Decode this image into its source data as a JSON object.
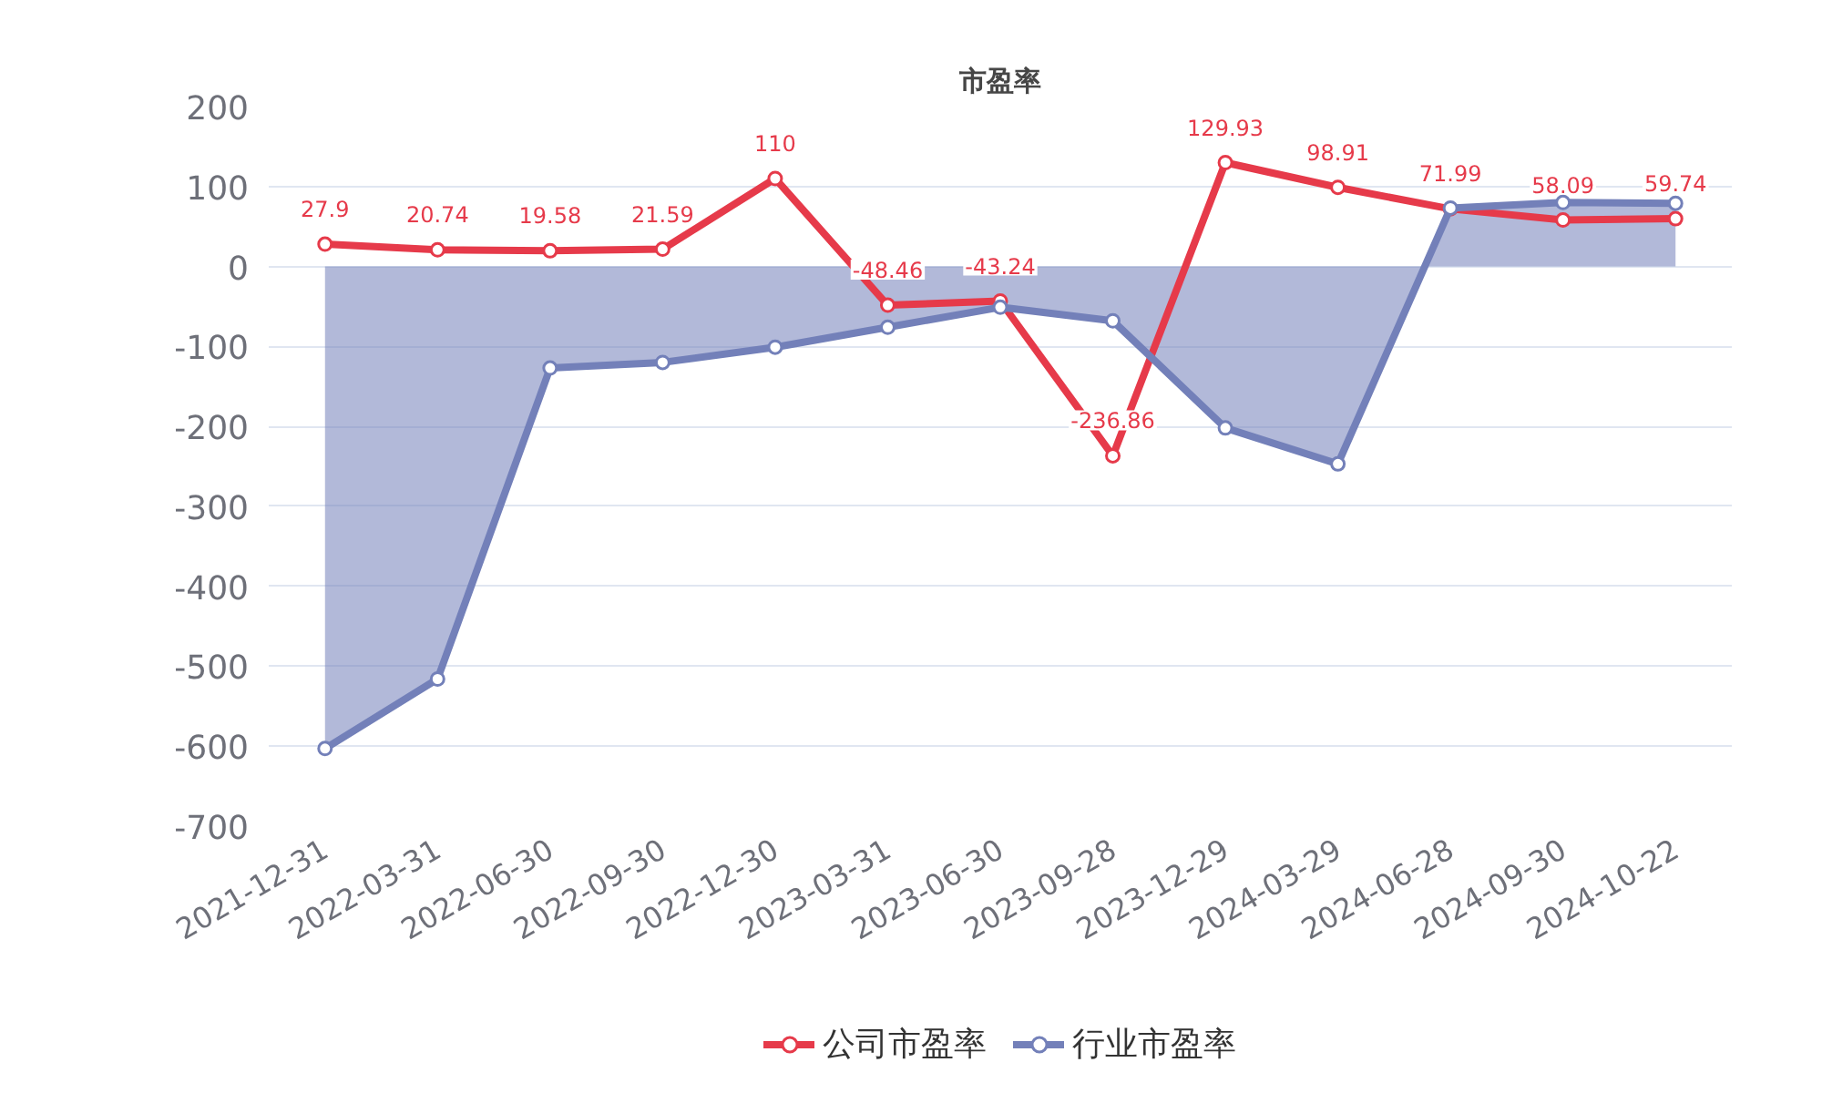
{
  "chart_data": {
    "type": "line",
    "title": "市盈率",
    "categories": [
      "2021-12-31",
      "2022-03-31",
      "2022-06-30",
      "2022-09-30",
      "2022-12-30",
      "2023-03-31",
      "2023-06-30",
      "2023-09-28",
      "2023-12-29",
      "2024-03-29",
      "2024-06-28",
      "2024-09-30",
      "2024-10-22"
    ],
    "ylim": [
      -700,
      200
    ],
    "yticks": [
      -700,
      -600,
      -500,
      -400,
      -300,
      -200,
      -100,
      0,
      100,
      200
    ],
    "grid": "y",
    "legend": "bottom",
    "marker": "circle",
    "series": [
      {
        "name": "公司市盈率",
        "color": "#e63a4a",
        "values": [
          27.9,
          20.74,
          19.58,
          21.59,
          110,
          -48.46,
          -43.24,
          -236.86,
          129.93,
          98.91,
          71.99,
          58.09,
          59.74
        ],
        "value_labels": [
          "27.9",
          "20.74",
          "19.58",
          "21.59",
          "110",
          "-48.46",
          "-43.24",
          "-236.86",
          "129.93",
          "98.91",
          "71.99",
          "58.09",
          "59.74"
        ]
      },
      {
        "name": "行业市盈率",
        "type": "area",
        "color": "#7380b9",
        "values": [
          -603,
          -516,
          -127,
          -120,
          -101,
          -76,
          -51,
          -68,
          -202,
          -247,
          73,
          80,
          79
        ]
      }
    ]
  }
}
